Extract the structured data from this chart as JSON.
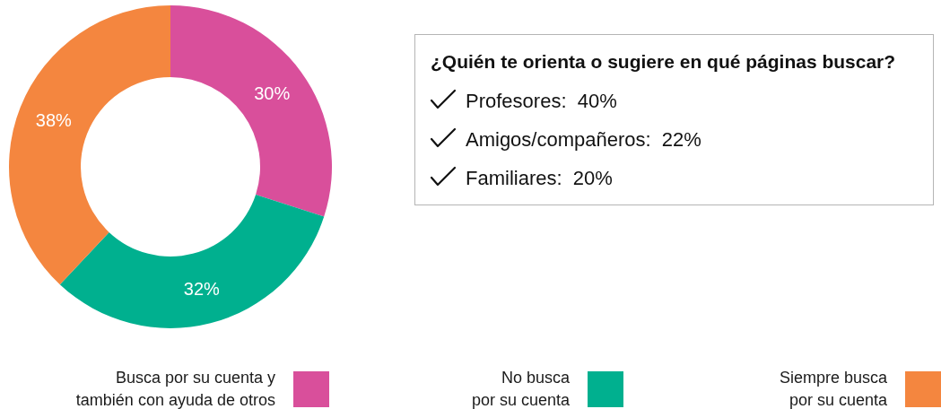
{
  "chart_data": [
    {
      "type": "donut",
      "categories": [
        "Busca por su cuenta y\ntambién con ayuda de otros",
        "No busca\npor su cuenta",
        "Siempre busca\npor su cuenta"
      ],
      "values": [
        30,
        32,
        38
      ],
      "colors": [
        "#d94f9b",
        "#00b08f",
        "#f4863f"
      ],
      "value_labels": [
        "30%",
        "32%",
        "38%"
      ],
      "legend": "bottom"
    },
    {
      "type": "other",
      "title": "¿Quién te orienta o sugiere en qué páginas buscar?",
      "annotations": [
        "Profesores:  40%",
        "Amigos/compañeros:  22%",
        "Familiares:  20%"
      ]
    }
  ]
}
